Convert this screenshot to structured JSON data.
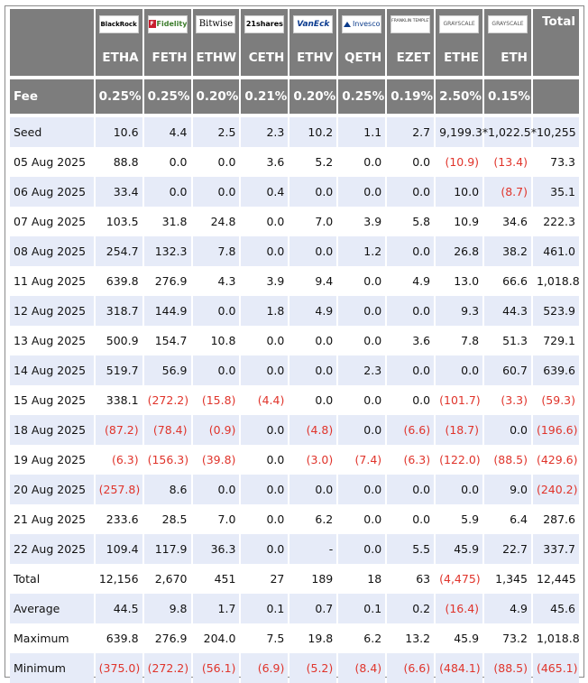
{
  "header": {
    "logos": [
      {
        "name": "blackrock-logo",
        "text": "BlackRock",
        "cls": "br"
      },
      {
        "name": "fidelity-logo",
        "text": "Fidelity",
        "cls": "fi",
        "mark": "F"
      },
      {
        "name": "bitwise-logo",
        "text": "Bitwise",
        "cls": "bw"
      },
      {
        "name": "21shares-logo",
        "text": "21shares",
        "cls": "sh"
      },
      {
        "name": "vaneck-logo",
        "text": "VanEck",
        "cls": "ve"
      },
      {
        "name": "invesco-logo",
        "text": "Invesco",
        "cls": "iv"
      },
      {
        "name": "franklin-templeton-logo",
        "text": "FRANKLIN TEMPLETON",
        "cls": "ft"
      },
      {
        "name": "grayscale-logo",
        "text": "GRAYSCALE",
        "cls": "gs"
      },
      {
        "name": "grayscale-logo-2",
        "text": "GRAYSCALE",
        "cls": "gs"
      }
    ],
    "total_label": "Total",
    "tickers": [
      "ETHA",
      "FETH",
      "ETHW",
      "CETH",
      "ETHV",
      "QETH",
      "EZET",
      "ETHE",
      "ETH"
    ],
    "fee_label": "Fee",
    "fees": [
      "0.25%",
      "0.25%",
      "0.20%",
      "0.21%",
      "0.20%",
      "0.25%",
      "0.19%",
      "2.50%",
      "0.15%"
    ]
  },
  "rows": [
    {
      "label": "Seed",
      "values": [
        "10.6",
        "4.4",
        "2.5",
        "2.3",
        "10.2",
        "1.1",
        "2.7",
        "9,199.3*",
        "1,022.5*",
        "10,255"
      ]
    },
    {
      "label": "05 Aug 2025",
      "values": [
        "88.8",
        "0.0",
        "0.0",
        "3.6",
        "5.2",
        "0.0",
        "0.0",
        "(10.9)",
        "(13.4)",
        "73.3"
      ]
    },
    {
      "label": "06 Aug 2025",
      "values": [
        "33.4",
        "0.0",
        "0.0",
        "0.4",
        "0.0",
        "0.0",
        "0.0",
        "10.0",
        "(8.7)",
        "35.1"
      ]
    },
    {
      "label": "07 Aug 2025",
      "values": [
        "103.5",
        "31.8",
        "24.8",
        "0.0",
        "7.0",
        "3.9",
        "5.8",
        "10.9",
        "34.6",
        "222.3"
      ]
    },
    {
      "label": "08 Aug 2025",
      "values": [
        "254.7",
        "132.3",
        "7.8",
        "0.0",
        "0.0",
        "1.2",
        "0.0",
        "26.8",
        "38.2",
        "461.0"
      ]
    },
    {
      "label": "11 Aug 2025",
      "values": [
        "639.8",
        "276.9",
        "4.3",
        "3.9",
        "9.4",
        "0.0",
        "4.9",
        "13.0",
        "66.6",
        "1,018.8"
      ]
    },
    {
      "label": "12 Aug 2025",
      "values": [
        "318.7",
        "144.9",
        "0.0",
        "1.8",
        "4.9",
        "0.0",
        "0.0",
        "9.3",
        "44.3",
        "523.9"
      ]
    },
    {
      "label": "13 Aug 2025",
      "values": [
        "500.9",
        "154.7",
        "10.8",
        "0.0",
        "0.0",
        "0.0",
        "3.6",
        "7.8",
        "51.3",
        "729.1"
      ]
    },
    {
      "label": "14 Aug 2025",
      "values": [
        "519.7",
        "56.9",
        "0.0",
        "0.0",
        "0.0",
        "2.3",
        "0.0",
        "0.0",
        "60.7",
        "639.6"
      ]
    },
    {
      "label": "15 Aug 2025",
      "values": [
        "338.1",
        "(272.2)",
        "(15.8)",
        "(4.4)",
        "0.0",
        "0.0",
        "0.0",
        "(101.7)",
        "(3.3)",
        "(59.3)"
      ]
    },
    {
      "label": "18 Aug 2025",
      "values": [
        "(87.2)",
        "(78.4)",
        "(0.9)",
        "0.0",
        "(4.8)",
        "0.0",
        "(6.6)",
        "(18.7)",
        "0.0",
        "(196.6)"
      ]
    },
    {
      "label": "19 Aug 2025",
      "values": [
        "(6.3)",
        "(156.3)",
        "(39.8)",
        "0.0",
        "(3.0)",
        "(7.4)",
        "(6.3)",
        "(122.0)",
        "(88.5)",
        "(429.6)"
      ]
    },
    {
      "label": "20 Aug 2025",
      "values": [
        "(257.8)",
        "8.6",
        "0.0",
        "0.0",
        "0.0",
        "0.0",
        "0.0",
        "0.0",
        "9.0",
        "(240.2)"
      ]
    },
    {
      "label": "21 Aug 2025",
      "values": [
        "233.6",
        "28.5",
        "7.0",
        "0.0",
        "6.2",
        "0.0",
        "0.0",
        "5.9",
        "6.4",
        "287.6"
      ]
    },
    {
      "label": "22 Aug 2025",
      "values": [
        "109.4",
        "117.9",
        "36.3",
        "0.0",
        "-",
        "0.0",
        "5.5",
        "45.9",
        "22.7",
        "337.7"
      ]
    },
    {
      "label": "Total",
      "values": [
        "12,156",
        "2,670",
        "451",
        "27",
        "189",
        "18",
        "63",
        "(4,475)",
        "1,345",
        "12,445"
      ]
    },
    {
      "label": "Average",
      "values": [
        "44.5",
        "9.8",
        "1.7",
        "0.1",
        "0.7",
        "0.1",
        "0.2",
        "(16.4)",
        "4.9",
        "45.6"
      ]
    },
    {
      "label": "Maximum",
      "values": [
        "639.8",
        "276.9",
        "204.0",
        "7.5",
        "19.8",
        "6.2",
        "13.2",
        "45.9",
        "73.2",
        "1,018.8"
      ]
    },
    {
      "label": "Minimum",
      "values": [
        "(375.0)",
        "(272.2)",
        "(56.1)",
        "(6.9)",
        "(5.2)",
        "(8.4)",
        "(6.6)",
        "(484.1)",
        "(88.5)",
        "(465.1)"
      ]
    }
  ],
  "colors": {
    "header_bg": "#7d7d7d",
    "stripe": "#e6ebf8",
    "negative": "#e0342b"
  }
}
